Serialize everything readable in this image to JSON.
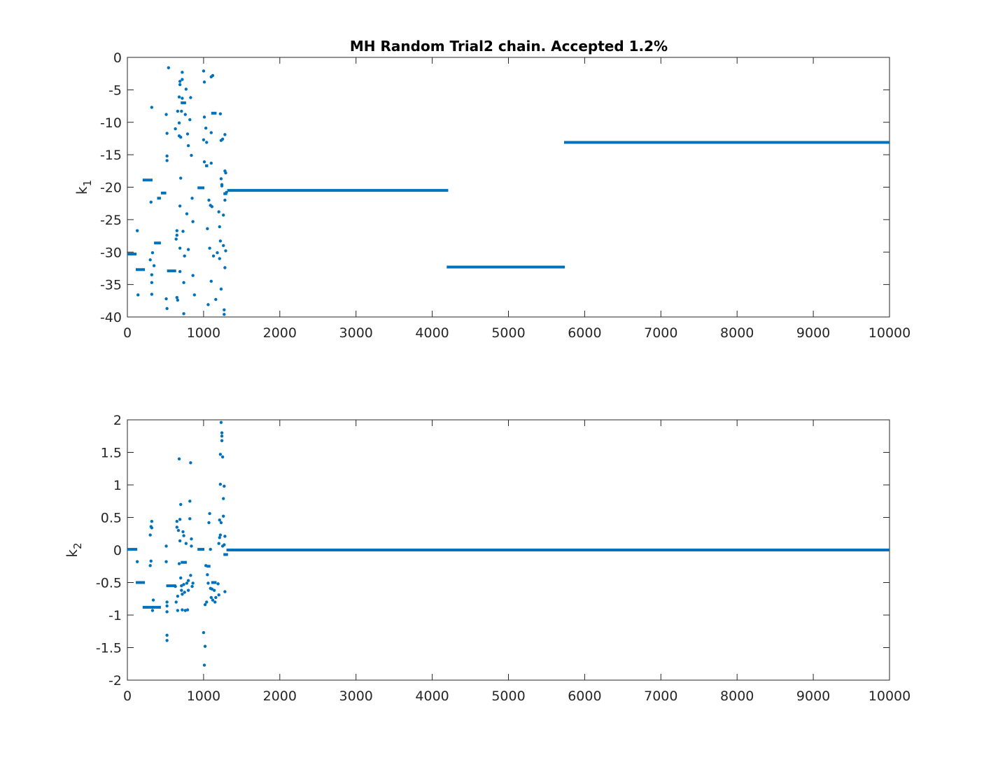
{
  "title": "MH Random Trial2 chain. Accepted 1.2%",
  "colors": {
    "series": "#0072BD",
    "axis": "#262626",
    "background": "#ffffff"
  },
  "chart_data": [
    {
      "type": "scatter",
      "title": "MH Random Trial2 chain. Accepted 1.2%",
      "xlabel": "",
      "ylabel_base": "k",
      "ylabel_sub": "1",
      "xlim": [
        0,
        10000
      ],
      "ylim": [
        -40,
        0
      ],
      "xticks": [
        0,
        1000,
        2000,
        3000,
        4000,
        5000,
        6000,
        7000,
        8000,
        9000,
        10000
      ],
      "yticks": [
        0,
        -5,
        -10,
        -15,
        -20,
        -25,
        -30,
        -35,
        -40
      ],
      "grid": false,
      "segments": [
        {
          "x0": 0,
          "x1": 120,
          "y": -30.3
        },
        {
          "x0": 110,
          "x1": 230,
          "y": -32.7
        },
        {
          "x0": 200,
          "x1": 330,
          "y": -18.9
        },
        {
          "x0": 350,
          "x1": 440,
          "y": -28.6
        },
        {
          "x0": 390,
          "x1": 440,
          "y": -21.7
        },
        {
          "x0": 440,
          "x1": 510,
          "y": -20.9
        },
        {
          "x0": 520,
          "x1": 640,
          "y": -32.9
        },
        {
          "x0": 700,
          "x1": 770,
          "y": -7.0
        },
        {
          "x0": 920,
          "x1": 1010,
          "y": -20.1
        },
        {
          "x0": 1020,
          "x1": 1060,
          "y": -16.7
        },
        {
          "x0": 1100,
          "x1": 1170,
          "y": -8.6
        },
        {
          "x0": 1260,
          "x1": 1310,
          "y": -21.0
        },
        {
          "x0": 1310,
          "x1": 4210,
          "y": -20.5
        },
        {
          "x0": 4190,
          "x1": 5740,
          "y": -32.3
        },
        {
          "x0": 5730,
          "x1": 10000,
          "y": -13.1
        }
      ],
      "points": [
        [
          130,
          -26.7
        ],
        [
          140,
          -36.6
        ],
        [
          300,
          -31.2
        ],
        [
          310,
          -22.3
        ],
        [
          320,
          -7.7
        ],
        [
          320,
          -34.7
        ],
        [
          320,
          -33.5
        ],
        [
          320,
          -36.5
        ],
        [
          330,
          -30.1
        ],
        [
          350,
          -32.1
        ],
        [
          510,
          -8.8
        ],
        [
          520,
          -11.7
        ],
        [
          520,
          -15.2
        ],
        [
          520,
          -15.9
        ],
        [
          510,
          -37.2
        ],
        [
          520,
          -38.7
        ],
        [
          540,
          -1.6
        ],
        [
          630,
          -11.0
        ],
        [
          640,
          -28.0
        ],
        [
          650,
          -27.4
        ],
        [
          650,
          -26.7
        ],
        [
          650,
          -37.0
        ],
        [
          660,
          -37.4
        ],
        [
          660,
          -8.3
        ],
        [
          680,
          -6.1
        ],
        [
          680,
          -10.1
        ],
        [
          680,
          -12.1
        ],
        [
          690,
          -4.2
        ],
        [
          690,
          -3.7
        ],
        [
          690,
          -22.9
        ],
        [
          690,
          -29.4
        ],
        [
          690,
          -33.0
        ],
        [
          700,
          -18.6
        ],
        [
          700,
          -12.3
        ],
        [
          710,
          -8.3
        ],
        [
          720,
          -3.4
        ],
        [
          720,
          -2.3
        ],
        [
          720,
          -6.3
        ],
        [
          730,
          -26.8
        ],
        [
          740,
          -39.5
        ],
        [
          740,
          -34.7
        ],
        [
          750,
          -30.6
        ],
        [
          760,
          -8.8
        ],
        [
          770,
          -4.9
        ],
        [
          780,
          -24.1
        ],
        [
          790,
          -11.8
        ],
        [
          800,
          -13.6
        ],
        [
          800,
          -29.6
        ],
        [
          820,
          -9.6
        ],
        [
          830,
          -6.2
        ],
        [
          840,
          -15.1
        ],
        [
          850,
          -21.7
        ],
        [
          860,
          -25.3
        ],
        [
          860,
          -33.6
        ],
        [
          880,
          -36.6
        ],
        [
          1000,
          -2.1
        ],
        [
          1000,
          -12.7
        ],
        [
          1010,
          -3.8
        ],
        [
          1010,
          -16.1
        ],
        [
          1010,
          -9.2
        ],
        [
          1030,
          -10.9
        ],
        [
          1040,
          -13.1
        ],
        [
          1050,
          -26.4
        ],
        [
          1060,
          -38.1
        ],
        [
          1070,
          -22.0
        ],
        [
          1080,
          -29.4
        ],
        [
          1090,
          -22.8
        ],
        [
          1100,
          -3.0
        ],
        [
          1100,
          -11.6
        ],
        [
          1100,
          -16.3
        ],
        [
          1100,
          -34.5
        ],
        [
          1110,
          -23.0
        ],
        [
          1120,
          -2.8
        ],
        [
          1130,
          -30.6
        ],
        [
          1160,
          -37.3
        ],
        [
          1180,
          -30.1
        ],
        [
          1200,
          -23.8
        ],
        [
          1210,
          -31.0
        ],
        [
          1210,
          -26.1
        ],
        [
          1220,
          -28.3
        ],
        [
          1220,
          -8.7
        ],
        [
          1230,
          -12.8
        ],
        [
          1230,
          -18.7
        ],
        [
          1230,
          -35.7
        ],
        [
          1240,
          -19.6
        ],
        [
          1240,
          -19.8
        ],
        [
          1250,
          -12.6
        ],
        [
          1260,
          -24.3
        ],
        [
          1260,
          -29.0
        ],
        [
          1270,
          -39.6
        ],
        [
          1270,
          -38.9
        ],
        [
          1280,
          -11.9
        ],
        [
          1280,
          -17.5
        ],
        [
          1280,
          -22.0
        ],
        [
          1280,
          -32.4
        ],
        [
          1290,
          -17.8
        ],
        [
          1290,
          -29.8
        ],
        [
          1300,
          -20.8
        ]
      ]
    },
    {
      "type": "scatter",
      "xlabel": "",
      "ylabel_base": "k",
      "ylabel_sub": "2",
      "xlim": [
        0,
        10000
      ],
      "ylim": [
        -2,
        2
      ],
      "xticks": [
        0,
        1000,
        2000,
        3000,
        4000,
        5000,
        6000,
        7000,
        8000,
        9000,
        10000
      ],
      "yticks": [
        2,
        1.5,
        1,
        0.5,
        0,
        -0.5,
        -1,
        -1.5,
        -2
      ],
      "grid": false,
      "segments": [
        {
          "x0": 0,
          "x1": 130,
          "y": 0.01
        },
        {
          "x0": 110,
          "x1": 230,
          "y": -0.5
        },
        {
          "x0": 200,
          "x1": 440,
          "y": -0.88
        },
        {
          "x0": 510,
          "x1": 640,
          "y": -0.55
        },
        {
          "x0": 700,
          "x1": 780,
          "y": -0.19
        },
        {
          "x0": 920,
          "x1": 1010,
          "y": 0.01
        },
        {
          "x0": 1040,
          "x1": 1090,
          "y": -0.25
        },
        {
          "x0": 1100,
          "x1": 1170,
          "y": -0.5
        },
        {
          "x0": 1260,
          "x1": 1320,
          "y": -0.07
        },
        {
          "x0": 1300,
          "x1": 10000,
          "y": 0.0
        }
      ],
      "points": [
        [
          130,
          -0.18
        ],
        [
          300,
          -0.24
        ],
        [
          300,
          0.23
        ],
        [
          310,
          -0.17
        ],
        [
          310,
          0.36
        ],
        [
          320,
          0.34
        ],
        [
          320,
          0.44
        ],
        [
          330,
          -0.93
        ],
        [
          340,
          -0.77
        ],
        [
          510,
          0.06
        ],
        [
          510,
          -0.18
        ],
        [
          520,
          -0.8
        ],
        [
          520,
          -0.86
        ],
        [
          520,
          -0.95
        ],
        [
          520,
          -1.31
        ],
        [
          520,
          -1.39
        ],
        [
          630,
          -0.56
        ],
        [
          640,
          -0.8
        ],
        [
          650,
          0.35
        ],
        [
          650,
          0.44
        ],
        [
          660,
          -0.93
        ],
        [
          660,
          -0.71
        ],
        [
          670,
          0.3
        ],
        [
          680,
          -0.21
        ],
        [
          680,
          1.4
        ],
        [
          690,
          0.14
        ],
        [
          690,
          0.47
        ],
        [
          700,
          0.7
        ],
        [
          700,
          -0.43
        ],
        [
          710,
          -0.55
        ],
        [
          710,
          -0.62
        ],
        [
          720,
          -0.68
        ],
        [
          720,
          -0.92
        ],
        [
          730,
          0.28
        ],
        [
          740,
          0.22
        ],
        [
          740,
          -0.53
        ],
        [
          750,
          -0.65
        ],
        [
          760,
          -0.93
        ],
        [
          770,
          0.1
        ],
        [
          780,
          -0.51
        ],
        [
          790,
          -0.92
        ],
        [
          800,
          -0.62
        ],
        [
          800,
          -0.47
        ],
        [
          820,
          0.75
        ],
        [
          820,
          0.48
        ],
        [
          830,
          -0.39
        ],
        [
          830,
          1.34
        ],
        [
          840,
          0.17
        ],
        [
          840,
          0.06
        ],
        [
          850,
          -0.56
        ],
        [
          860,
          -0.51
        ],
        [
          1000,
          -1.27
        ],
        [
          1010,
          -1.77
        ],
        [
          1020,
          -1.48
        ],
        [
          1020,
          -0.84
        ],
        [
          1030,
          -0.24
        ],
        [
          1040,
          -0.8
        ],
        [
          1050,
          -0.38
        ],
        [
          1060,
          -0.51
        ],
        [
          1070,
          0.42
        ],
        [
          1080,
          0.56
        ],
        [
          1090,
          -0.59
        ],
        [
          1090,
          0.01
        ],
        [
          1100,
          -0.73
        ],
        [
          1110,
          -0.6
        ],
        [
          1120,
          -0.77
        ],
        [
          1140,
          -0.62
        ],
        [
          1150,
          -0.8
        ],
        [
          1160,
          -0.73
        ],
        [
          1190,
          -0.52
        ],
        [
          1200,
          0.1
        ],
        [
          1200,
          -0.69
        ],
        [
          1210,
          0.19
        ],
        [
          1210,
          0.46
        ],
        [
          1220,
          0.23
        ],
        [
          1220,
          1.47
        ],
        [
          1220,
          1.01
        ],
        [
          1230,
          1.96
        ],
        [
          1230,
          0.42
        ],
        [
          1240,
          1.8
        ],
        [
          1240,
          1.75
        ],
        [
          1240,
          1.68
        ],
        [
          1250,
          0.06
        ],
        [
          1250,
          1.43
        ],
        [
          1260,
          0.52
        ],
        [
          1260,
          0.79
        ],
        [
          1270,
          0.98
        ],
        [
          1270,
          0.08
        ],
        [
          1280,
          0.21
        ],
        [
          1280,
          -0.64
        ]
      ]
    }
  ]
}
